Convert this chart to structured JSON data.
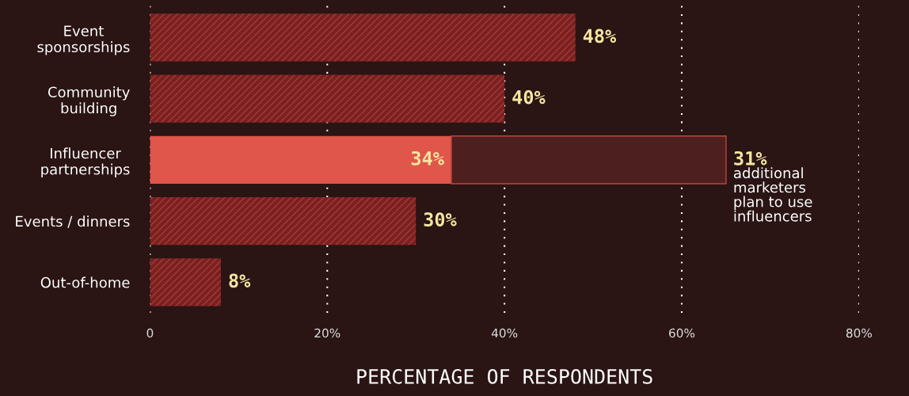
{
  "chart_data": {
    "type": "bar",
    "orientation": "horizontal",
    "stacked": true,
    "categories": [
      "Event\nsponsorships",
      "Community\nbuilding",
      "Influencer\npartnerships",
      "Events / dinners",
      "Out-of-home"
    ],
    "series": [
      {
        "color": "#7a2020",
        "colors": [
          "#7a2020",
          "#7a2020",
          "#e0564a",
          "#7a2020",
          "#7a2020"
        ],
        "values": [
          48,
          40,
          34,
          30,
          8
        ],
        "value_labels": [
          "48%",
          "40%",
          "34%",
          "30%",
          "8%"
        ]
      },
      {
        "color": "#4e1f1f",
        "values": [
          null,
          null,
          31,
          null,
          null
        ],
        "value_labels": [
          null,
          null,
          "31%",
          null,
          null
        ]
      }
    ],
    "annotations": [
      {
        "text": "additional\nmarketers\nplan to use\ninfluencers",
        "x": 65,
        "y": "Influencer\npartnerships"
      }
    ],
    "xlabel": "PERCENTAGE OF RESPONDENTS",
    "xlim": [
      0,
      80
    ],
    "xticks": [
      0,
      {
        "value": 20,
        "label": "20%"
      },
      {
        "value": 40,
        "label": "40%"
      },
      {
        "value": 60,
        "label": "60%"
      },
      {
        "value": 80,
        "label": "80%"
      }
    ],
    "grid": "x"
  }
}
